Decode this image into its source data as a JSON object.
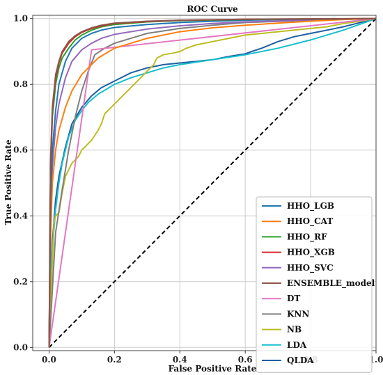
{
  "chart_data": {
    "type": "line",
    "title": "ROC Curve",
    "xlabel": "False Positive Rate",
    "ylabel": "True Positive Rate",
    "xlim": [
      -0.05,
      1.0
    ],
    "ylim": [
      -0.01,
      1.01
    ],
    "xticks": [
      "0.0",
      "0.2",
      "0.4",
      "0.6",
      "0.8",
      "1.0"
    ],
    "yticks": [
      "0.0",
      "0.2",
      "0.4",
      "0.6",
      "0.8",
      "1.0"
    ],
    "grid": true,
    "legend_position": "lower-right",
    "series": [
      {
        "name": "HHO_LGB",
        "color": "#1f77b4",
        "x": [
          0,
          0.005,
          0.01,
          0.02,
          0.03,
          0.05,
          0.07,
          0.1,
          0.13,
          0.16,
          0.2,
          0.3,
          0.4,
          0.5,
          0.6,
          0.7,
          0.8,
          0.9,
          1.0
        ],
        "y": [
          0,
          0.45,
          0.6,
          0.72,
          0.8,
          0.87,
          0.91,
          0.94,
          0.955,
          0.965,
          0.973,
          0.982,
          0.988,
          0.992,
          0.995,
          0.997,
          0.998,
          0.999,
          1.0
        ]
      },
      {
        "name": "HHO_CAT",
        "color": "#ff7f0e",
        "x": [
          0,
          0.005,
          0.01,
          0.02,
          0.03,
          0.05,
          0.07,
          0.1,
          0.15,
          0.2,
          0.3,
          0.4,
          0.5,
          0.6,
          0.7,
          0.8,
          0.9,
          1.0
        ],
        "y": [
          0,
          0.35,
          0.5,
          0.6,
          0.66,
          0.73,
          0.78,
          0.83,
          0.88,
          0.91,
          0.94,
          0.96,
          0.972,
          0.98,
          0.986,
          0.992,
          0.997,
          1.0
        ]
      },
      {
        "name": "HHO_RF",
        "color": "#2ca02c",
        "x": [
          0,
          0.005,
          0.01,
          0.02,
          0.03,
          0.04,
          0.06,
          0.08,
          0.1,
          0.13,
          0.16,
          0.2,
          0.3,
          0.4,
          0.6,
          0.8,
          1.0
        ],
        "y": [
          0,
          0.55,
          0.7,
          0.8,
          0.85,
          0.88,
          0.91,
          0.935,
          0.95,
          0.965,
          0.975,
          0.982,
          0.99,
          0.994,
          0.997,
          0.999,
          1.0
        ]
      },
      {
        "name": "HHO_XGB",
        "color": "#d62728",
        "x": [
          0,
          0.005,
          0.01,
          0.02,
          0.03,
          0.04,
          0.06,
          0.08,
          0.1,
          0.13,
          0.16,
          0.2,
          0.3,
          0.4,
          0.6,
          0.8,
          1.0
        ],
        "y": [
          0,
          0.57,
          0.72,
          0.82,
          0.865,
          0.895,
          0.925,
          0.945,
          0.958,
          0.97,
          0.978,
          0.985,
          0.991,
          0.995,
          0.998,
          0.999,
          1.0
        ]
      },
      {
        "name": "HHO_SVC",
        "color": "#9467bd",
        "x": [
          0,
          0.005,
          0.01,
          0.02,
          0.03,
          0.05,
          0.07,
          0.1,
          0.13,
          0.16,
          0.2,
          0.3,
          0.4,
          0.5,
          0.6,
          0.8,
          1.0
        ],
        "y": [
          0,
          0.4,
          0.55,
          0.67,
          0.74,
          0.82,
          0.87,
          0.905,
          0.925,
          0.94,
          0.952,
          0.968,
          0.978,
          0.985,
          0.99,
          0.996,
          1.0
        ]
      },
      {
        "name": "ENSEMBLE_model",
        "color": "#8c564b",
        "x": [
          0,
          0.005,
          0.01,
          0.02,
          0.03,
          0.04,
          0.06,
          0.08,
          0.1,
          0.13,
          0.16,
          0.2,
          0.3,
          0.4,
          0.6,
          0.8,
          1.0
        ],
        "y": [
          0,
          0.58,
          0.73,
          0.83,
          0.87,
          0.9,
          0.93,
          0.948,
          0.96,
          0.972,
          0.98,
          0.986,
          0.992,
          0.995,
          0.998,
          0.999,
          1.0
        ]
      },
      {
        "name": "DT",
        "color": "#e377c2",
        "x": [
          0,
          0.13,
          1.0
        ],
        "y": [
          0,
          0.905,
          1.0
        ]
      },
      {
        "name": "KNN",
        "color": "#7f7f7f",
        "x": [
          0,
          0.02,
          0.04,
          0.06,
          0.08,
          0.1,
          0.12,
          0.14,
          0.17,
          0.2,
          0.25,
          0.3,
          0.4,
          0.5,
          0.6,
          0.8,
          1.0
        ],
        "y": [
          0,
          0.35,
          0.48,
          0.6,
          0.7,
          0.78,
          0.84,
          0.89,
          0.91,
          0.925,
          0.94,
          0.955,
          0.97,
          0.98,
          0.988,
          0.995,
          1.0
        ]
      },
      {
        "name": "NB",
        "color": "#bcbd22",
        "x": [
          0,
          0.01,
          0.015,
          0.02,
          0.03,
          0.04,
          0.05,
          0.07,
          0.09,
          0.1,
          0.11,
          0.12,
          0.13,
          0.14,
          0.15,
          0.16,
          0.17,
          0.18,
          0.19,
          0.2,
          0.22,
          0.24,
          0.26,
          0.28,
          0.3,
          0.32,
          0.33,
          0.35,
          0.38,
          0.4,
          0.42,
          0.45,
          0.5,
          0.55,
          0.6,
          0.65,
          0.7,
          0.75,
          0.8,
          0.85,
          0.9,
          0.95,
          1.0
        ],
        "y": [
          0,
          0.25,
          0.38,
          0.4,
          0.41,
          0.47,
          0.52,
          0.56,
          0.58,
          0.6,
          0.61,
          0.62,
          0.63,
          0.645,
          0.66,
          0.68,
          0.71,
          0.72,
          0.73,
          0.74,
          0.76,
          0.78,
          0.8,
          0.82,
          0.84,
          0.86,
          0.88,
          0.89,
          0.895,
          0.9,
          0.91,
          0.92,
          0.93,
          0.94,
          0.95,
          0.955,
          0.96,
          0.965,
          0.97,
          0.975,
          0.985,
          0.992,
          1.0
        ]
      },
      {
        "name": "LDA",
        "color": "#17becf",
        "x": [
          0,
          0.005,
          0.01,
          0.02,
          0.03,
          0.04,
          0.06,
          0.08,
          0.1,
          0.12,
          0.15,
          0.2,
          0.25,
          0.3,
          0.35,
          0.4,
          0.5,
          0.6,
          0.7,
          0.8,
          0.9,
          1.0
        ],
        "y": [
          0,
          0.18,
          0.3,
          0.42,
          0.5,
          0.56,
          0.64,
          0.69,
          0.72,
          0.745,
          0.77,
          0.8,
          0.82,
          0.835,
          0.85,
          0.86,
          0.875,
          0.89,
          0.91,
          0.935,
          0.965,
          1.0
        ]
      },
      {
        "name": "QLDA",
        "color": "#1f5fa0",
        "x": [
          0,
          0.005,
          0.01,
          0.02,
          0.03,
          0.05,
          0.07,
          0.1,
          0.13,
          0.16,
          0.2,
          0.25,
          0.3,
          0.35,
          0.4,
          0.45,
          0.5,
          0.55,
          0.6,
          0.62,
          0.65,
          0.7,
          0.75,
          0.8,
          0.85,
          0.9,
          1.0
        ],
        "y": [
          0,
          0.2,
          0.32,
          0.45,
          0.52,
          0.61,
          0.68,
          0.73,
          0.765,
          0.79,
          0.81,
          0.835,
          0.85,
          0.86,
          0.865,
          0.87,
          0.875,
          0.885,
          0.893,
          0.9,
          0.91,
          0.93,
          0.945,
          0.955,
          0.965,
          0.975,
          1.0
        ]
      }
    ],
    "reference_line": {
      "x": [
        0,
        1
      ],
      "y": [
        0,
        1
      ],
      "color": "#000000",
      "style": "dashed"
    }
  }
}
